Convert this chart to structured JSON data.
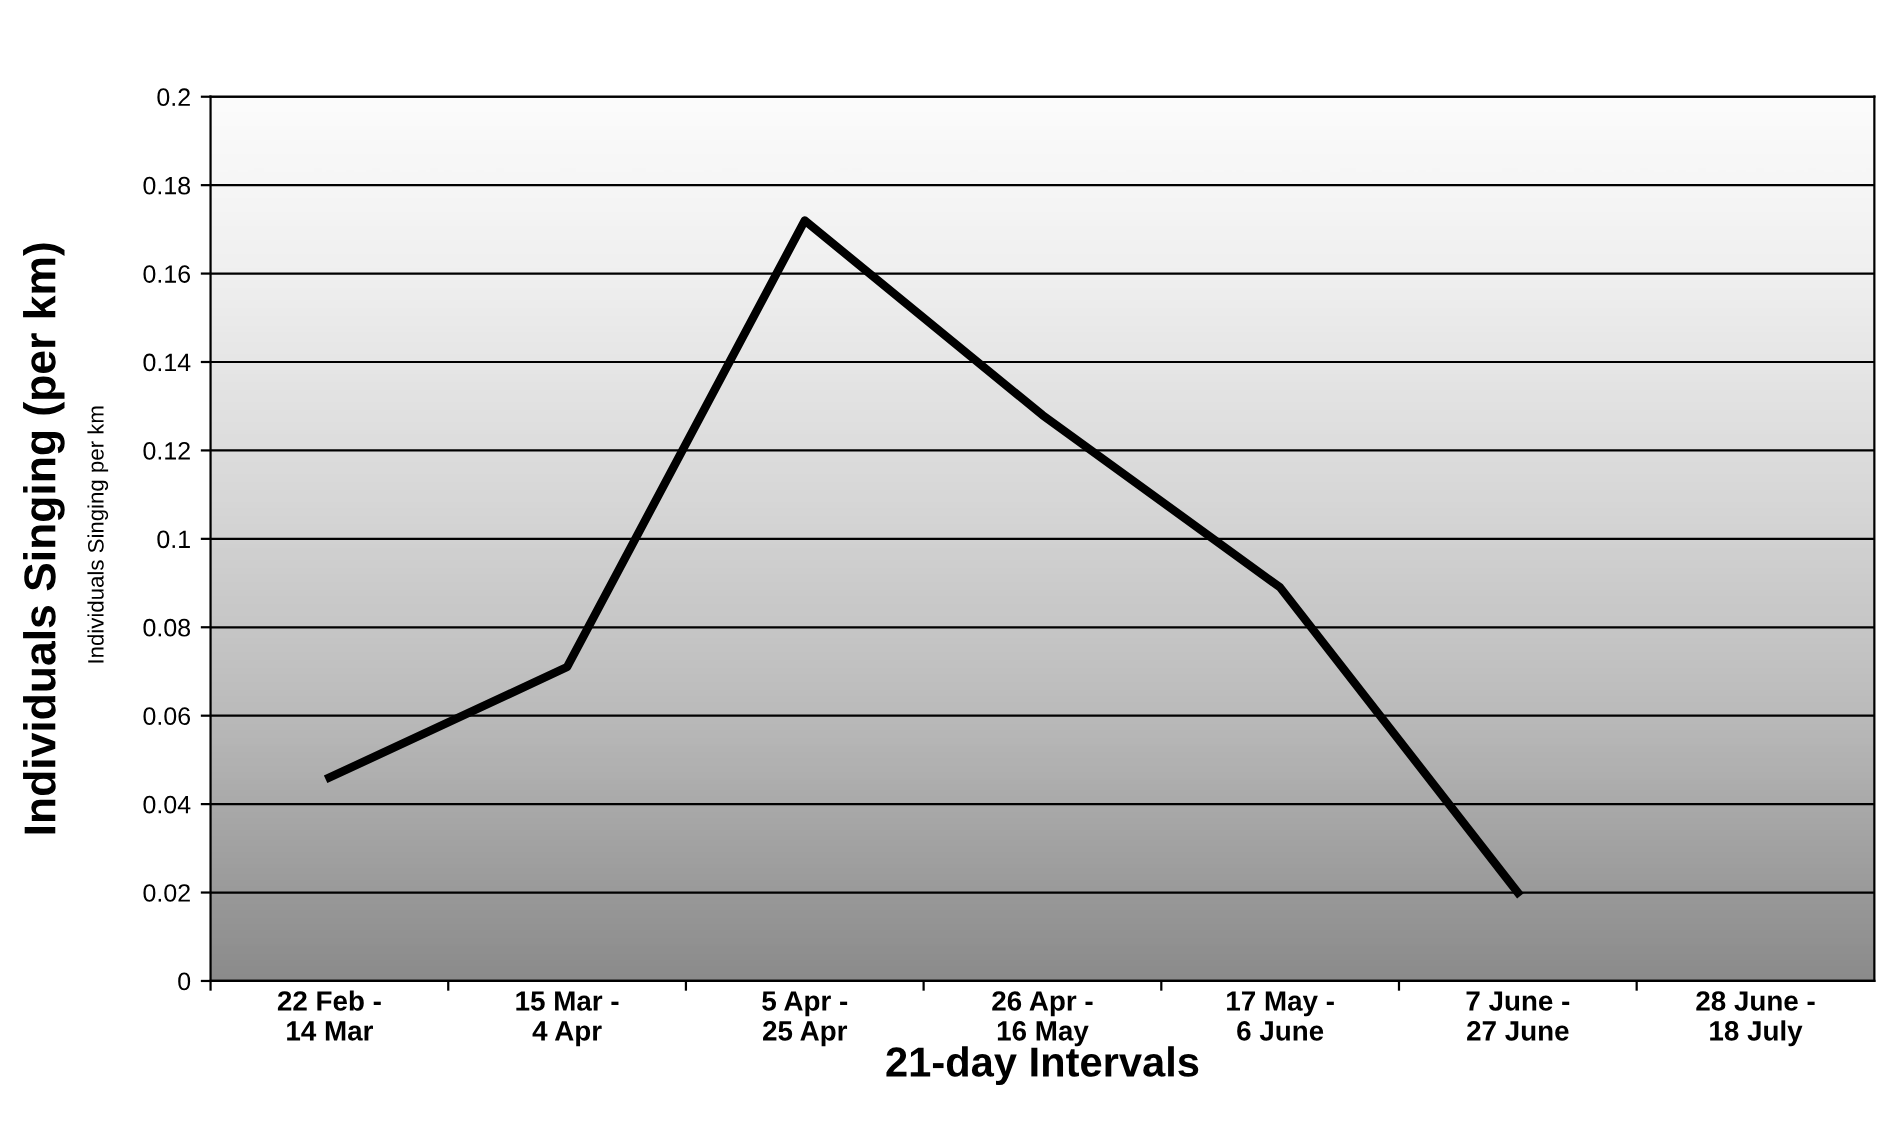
{
  "chart_data": {
    "type": "line",
    "ylabel": "Individuals Singing (per km)",
    "xlabel": "21-day Intervals",
    "annotations": [
      "Individuals Singing per km"
    ],
    "categories": [
      "22 Feb -\n14 Mar",
      "15 Mar -\n4 Apr",
      "5 Apr -\n25 Apr",
      "26 Apr -\n16 May",
      "17 May -\n6 June",
      "7 June -\n27 June",
      "28 June -\n18 July"
    ],
    "series": [
      {
        "color": "#000000",
        "values": [
          0.046,
          0.071,
          0.172,
          0.128,
          0.089,
          0.02,
          null
        ]
      }
    ],
    "ylim": [
      0,
      0.2
    ],
    "yticks": [
      0,
      0.02,
      0.04,
      0.06,
      0.08,
      0.1,
      0.12,
      0.14,
      0.16,
      0.18,
      0.2
    ],
    "grid": "y",
    "legend": false,
    "marker": "none",
    "line_style": "solid"
  }
}
